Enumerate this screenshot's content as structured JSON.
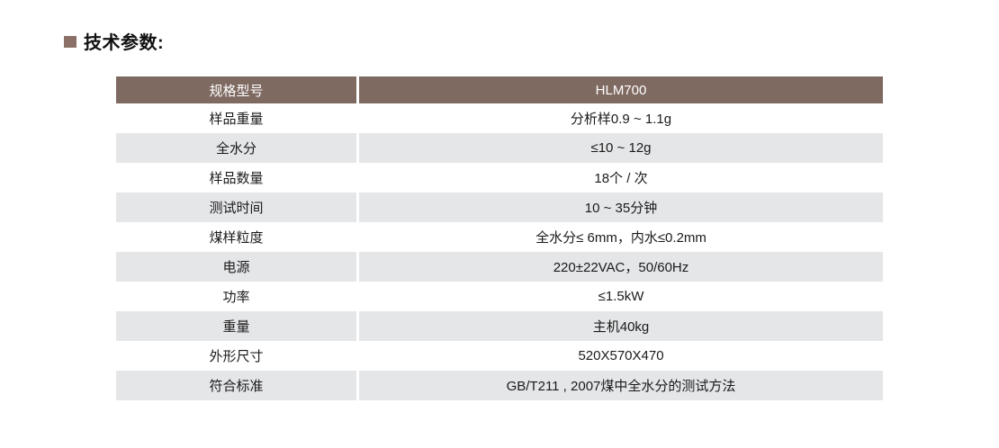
{
  "section": {
    "title": "技术参数:"
  },
  "colors": {
    "header_bg": "#7f6a62",
    "bullet": "#8a7066",
    "row_alt_bg": "#e5e6e8",
    "header_text": "#ffffff",
    "body_text": "#1a1a1a"
  },
  "table": {
    "header": {
      "label": "规格型号",
      "value": "HLM700"
    },
    "rows": [
      {
        "label": "样品重量",
        "value": "分析样0.9 ~ 1.1g"
      },
      {
        "label": "全水分",
        "value": "≤10 ~ 12g"
      },
      {
        "label": "样品数量",
        "value": "18个 / 次"
      },
      {
        "label": "测试时间",
        "value": "10 ~ 35分钟"
      },
      {
        "label": "煤样粒度",
        "value": "全水分≤ 6mm，内水≤0.2mm"
      },
      {
        "label": "电源",
        "value": "220±22VAC，50/60Hz"
      },
      {
        "label": "功率",
        "value": "≤1.5kW"
      },
      {
        "label": "重量",
        "value": "主机40kg"
      },
      {
        "label": "外形尺寸",
        "value": "520X570X470"
      },
      {
        "label": "符合标准",
        "value": "GB/T211 , 2007煤中全水分的测试方法"
      }
    ]
  }
}
